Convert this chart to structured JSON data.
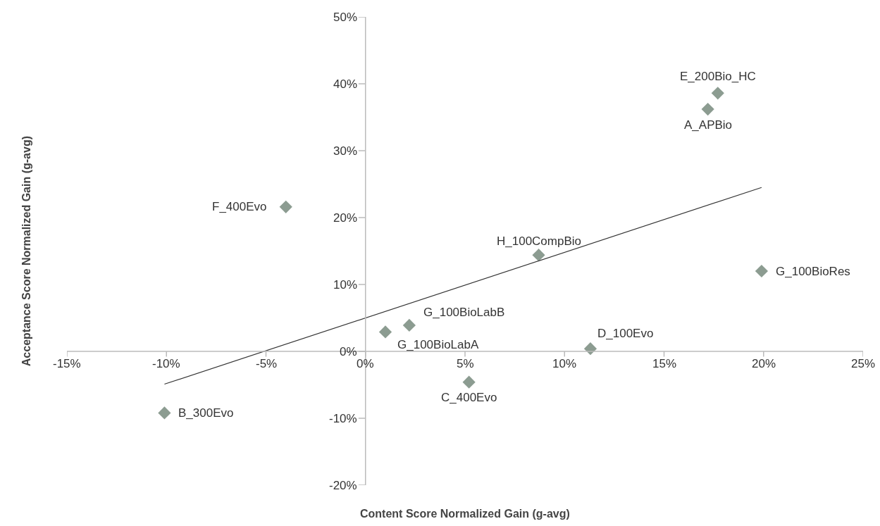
{
  "chart_data": {
    "type": "scatter",
    "xlabel": "Content Score Normalized Gain (g-avg)",
    "ylabel": "Acceptance Score Normalized Gain (g-avg)",
    "series": [
      {
        "color": "#8c9c91",
        "marker": "diamond",
        "x": [
          17.7,
          17.2,
          -4.0,
          8.7,
          19.9,
          2.2,
          1.0,
          11.3,
          5.2,
          -10.1
        ],
        "values": [
          38.6,
          36.2,
          21.6,
          14.4,
          12.0,
          3.9,
          2.9,
          0.4,
          -4.6,
          -9.2
        ]
      },
      {
        "type": "line",
        "color": "#333333",
        "x": [
          -10.1,
          19.9
        ],
        "values": [
          -4.9,
          24.5
        ]
      }
    ],
    "annotations": [
      {
        "text": "E_200Bio_HC",
        "x": 17.7,
        "y": 38.6
      },
      {
        "text": "A_APBio",
        "x": 17.2,
        "y": 36.2
      },
      {
        "text": "F_400Evo",
        "x": -4.0,
        "y": 21.6
      },
      {
        "text": "H_100CompBio",
        "x": 8.7,
        "y": 14.4
      },
      {
        "text": "G_100BioRes",
        "x": 19.9,
        "y": 12.0
      },
      {
        "text": "G_100BioLabB",
        "x": 2.2,
        "y": 3.9
      },
      {
        "text": "G_100BioLabA",
        "x": 1.0,
        "y": 2.9
      },
      {
        "text": "D_100Evo",
        "x": 11.3,
        "y": 0.4
      },
      {
        "text": "C_400Evo",
        "x": 5.2,
        "y": -4.6
      },
      {
        "text": "B_300Evo",
        "x": -10.1,
        "y": -9.2
      }
    ],
    "xlim": [
      -15,
      25
    ],
    "ylim": [
      -20,
      50
    ],
    "xticks": [
      {
        "value": -15,
        "label": "-15%"
      },
      {
        "value": -10,
        "label": "-10%"
      },
      {
        "value": -5,
        "label": "-5%"
      },
      {
        "value": 0,
        "label": "0%"
      },
      {
        "value": 5,
        "label": "5%"
      },
      {
        "value": 10,
        "label": "10%"
      },
      {
        "value": 15,
        "label": "15%"
      },
      {
        "value": 20,
        "label": "20%"
      },
      {
        "value": 25,
        "label": "25%"
      }
    ],
    "yticks": [
      {
        "value": -20,
        "label": "-20%"
      },
      {
        "value": -10,
        "label": "-10%"
      },
      {
        "value": 0,
        "label": "0%"
      },
      {
        "value": 10,
        "label": "10%"
      },
      {
        "value": 20,
        "label": "20%"
      },
      {
        "value": 30,
        "label": "30%"
      },
      {
        "value": 40,
        "label": "40%"
      },
      {
        "value": 50,
        "label": "50%"
      }
    ]
  }
}
